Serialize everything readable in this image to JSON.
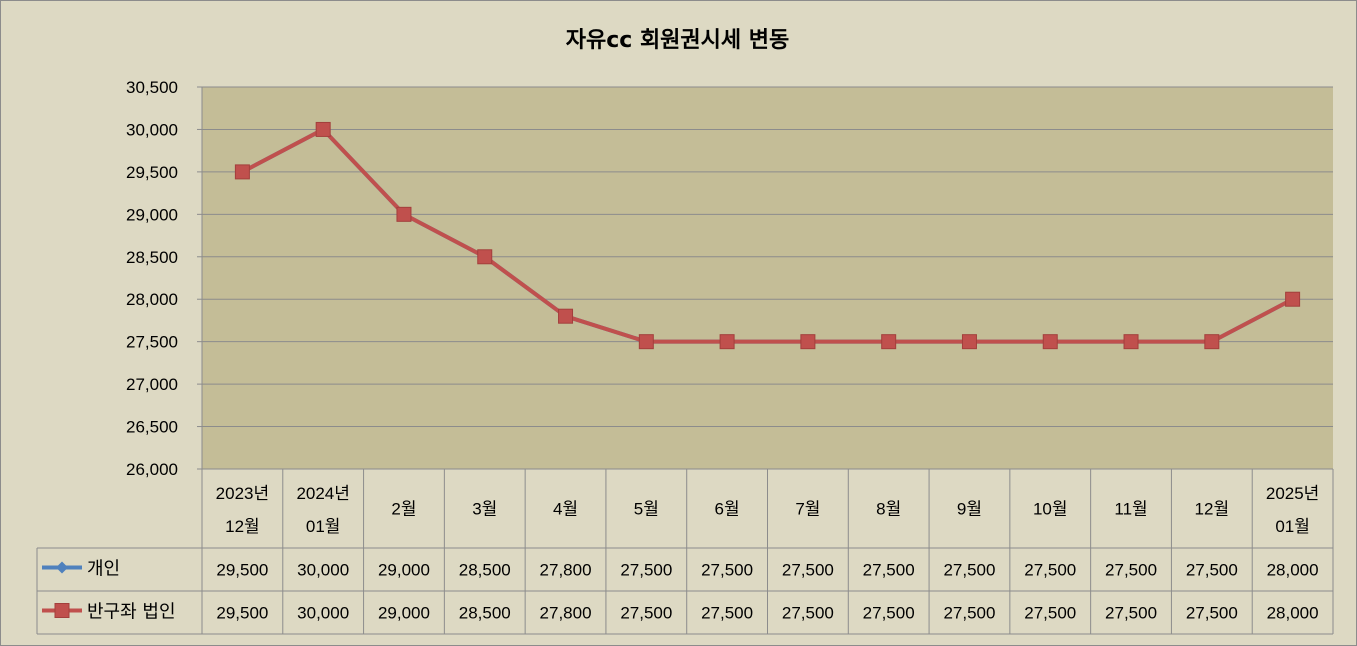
{
  "chart_data": {
    "type": "line",
    "title": "자유cc 회원권시세 변동",
    "categories": [
      [
        "2023년",
        "12월"
      ],
      [
        "2024년",
        "01월"
      ],
      [
        "2월"
      ],
      [
        "3월"
      ],
      [
        "4월"
      ],
      [
        "5월"
      ],
      [
        "6월"
      ],
      [
        "7월"
      ],
      [
        "8월"
      ],
      [
        "9월"
      ],
      [
        "10월"
      ],
      [
        "11월"
      ],
      [
        "12월"
      ],
      [
        "2025년",
        "01월"
      ]
    ],
    "ylim": [
      26000,
      30500
    ],
    "ytick_step": 500,
    "yticks": [
      "26,000",
      "26,500",
      "27,000",
      "27,500",
      "28,000",
      "28,500",
      "29,000",
      "29,500",
      "30,000",
      "30,500"
    ],
    "grid": true,
    "legend_placement": "data-table",
    "series": [
      {
        "name": "개인",
        "color": "#4f81bd",
        "marker": "diamond",
        "values": [
          29500,
          30000,
          29000,
          28500,
          27800,
          27500,
          27500,
          27500,
          27500,
          27500,
          27500,
          27500,
          27500,
          28000
        ],
        "labels": [
          "29,500",
          "30,000",
          "29,000",
          "28,500",
          "27,800",
          "27,500",
          "27,500",
          "27,500",
          "27,500",
          "27,500",
          "27,500",
          "27,500",
          "27,500",
          "28,000"
        ]
      },
      {
        "name": "반구좌 법인",
        "color": "#c0504d",
        "marker": "square",
        "values": [
          29500,
          30000,
          29000,
          28500,
          27800,
          27500,
          27500,
          27500,
          27500,
          27500,
          27500,
          27500,
          27500,
          28000
        ],
        "labels": [
          "29,500",
          "30,000",
          "29,000",
          "28,500",
          "27,800",
          "27,500",
          "27,500",
          "27,500",
          "27,500",
          "27,500",
          "27,500",
          "27,500",
          "27,500",
          "28,000"
        ]
      }
    ],
    "colors": {
      "chart_background": "#ddd9c3",
      "plot_background": "#c4bd97",
      "gridline": "#8c8c8c"
    }
  }
}
